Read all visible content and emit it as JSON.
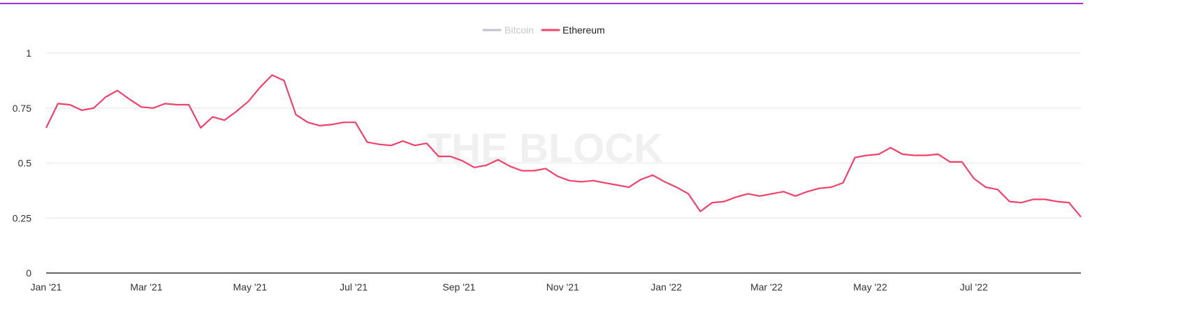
{
  "chart_data": {
    "type": "line",
    "title": "",
    "watermark": "THE BLOCK",
    "xlabel": "",
    "ylabel": "",
    "ylim": [
      0,
      1
    ],
    "yticks": [
      "0",
      "0.25",
      "0.5",
      "0.75",
      "1"
    ],
    "ytick_values": [
      0,
      0.25,
      0.5,
      0.75,
      1
    ],
    "xticks": [
      "Jan '21",
      "Mar '21",
      "May '21",
      "Jul '21",
      "Sep '21",
      "Nov '21",
      "Jan '22",
      "Mar '22",
      "May '22",
      "Jul '22"
    ],
    "xtick_days": [
      0,
      59,
      120,
      181,
      243,
      304,
      365,
      424,
      485,
      546
    ],
    "x_start": "2021-01-01",
    "x_interval_days": 7,
    "x_range_days": [
      0,
      609
    ],
    "grid": true,
    "legend_position": "top-center",
    "series": [
      {
        "name": "Bitcoin",
        "color": "#c2bfcf",
        "hidden": true,
        "values": []
      },
      {
        "name": "Ethereum",
        "color": "#f0426a",
        "hidden": false,
        "values": [
          0.66,
          0.77,
          0.765,
          0.74,
          0.75,
          0.8,
          0.83,
          0.79,
          0.755,
          0.75,
          0.77,
          0.765,
          0.765,
          0.66,
          0.71,
          0.695,
          0.735,
          0.78,
          0.845,
          0.9,
          0.875,
          0.72,
          0.685,
          0.67,
          0.675,
          0.685,
          0.685,
          0.595,
          0.585,
          0.58,
          0.6,
          0.58,
          0.59,
          0.53,
          0.53,
          0.51,
          0.48,
          0.49,
          0.515,
          0.485,
          0.465,
          0.465,
          0.475,
          0.44,
          0.42,
          0.415,
          0.42,
          0.41,
          0.4,
          0.39,
          0.425,
          0.445,
          0.415,
          0.39,
          0.36,
          0.28,
          0.32,
          0.325,
          0.345,
          0.36,
          0.35,
          0.36,
          0.37,
          0.35,
          0.37,
          0.385,
          0.39,
          0.41,
          0.525,
          0.535,
          0.54,
          0.57,
          0.54,
          0.535,
          0.535,
          0.54,
          0.505,
          0.505,
          0.43,
          0.39,
          0.38,
          0.325,
          0.32,
          0.335,
          0.335,
          0.325,
          0.32,
          0.255
        ]
      }
    ]
  }
}
